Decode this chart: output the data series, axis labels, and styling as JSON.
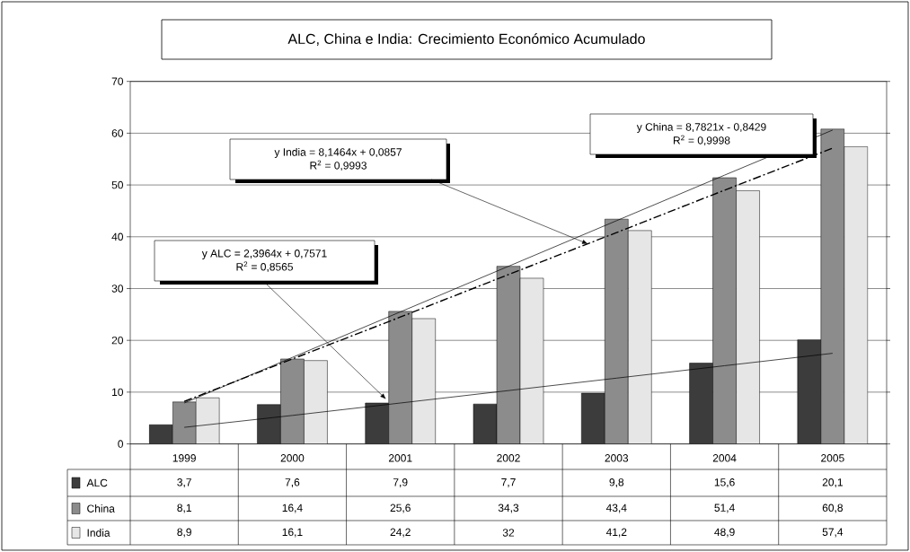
{
  "chart_data": {
    "type": "bar",
    "title": "ALC, China e India: Crecimiento Económico Acumulado",
    "categories": [
      "1999",
      "2000",
      "2001",
      "2002",
      "2003",
      "2004",
      "2005"
    ],
    "series": [
      {
        "name": "ALC",
        "color": "#3c3c3c",
        "values": [
          3.7,
          7.6,
          7.9,
          7.7,
          9.8,
          15.6,
          20.1
        ],
        "value_labels": [
          "3,7",
          "7,6",
          "7,9",
          "7,7",
          "9,8",
          "15,6",
          "20,1"
        ]
      },
      {
        "name": "China",
        "color": "#8c8c8c",
        "values": [
          8.1,
          16.4,
          25.6,
          34.3,
          43.4,
          51.4,
          60.8
        ],
        "value_labels": [
          "8,1",
          "16,4",
          "25,6",
          "34,3",
          "43,4",
          "51,4",
          "60,8"
        ]
      },
      {
        "name": "India",
        "color": "#e6e6e6",
        "values": [
          8.9,
          16.1,
          24.2,
          32,
          41.2,
          48.9,
          57.4
        ],
        "value_labels": [
          "8,9",
          "16,1",
          "24,2",
          "32",
          "41,2",
          "48,9",
          "57,4"
        ]
      },
      {
        "type": "line",
        "color": "#000000",
        "values": [
          3.2,
          5.5,
          7.9,
          10.3,
          12.7,
          15.1,
          17.5
        ],
        "line_style": "solid"
      },
      {
        "type": "line",
        "color": "#000000",
        "values": [
          7.9,
          16.7,
          25.5,
          34.3,
          43.1,
          51.9,
          60.6
        ],
        "line_style": "solid"
      },
      {
        "type": "line",
        "color": "#000000",
        "values": [
          8.2,
          16.4,
          24.5,
          32.7,
          40.8,
          49.0,
          57.1
        ],
        "line_style": "dashed"
      }
    ],
    "legend": "bottom",
    "ylim": [
      0,
      70
    ],
    "yticks": [
      0,
      10,
      20,
      30,
      40,
      50,
      60,
      70
    ],
    "grid": "y",
    "marker": "none",
    "annotations": [
      "y India = 8,1464x + 0,0857",
      "R$^{2}$ = 0,9993",
      "y ALC = 2,3964x + 0,7571",
      "R$^{2}$ = 0,8565",
      "y China = 8,7821x - 0,8429",
      "R$^{2}$ = 0,9998"
    ]
  }
}
